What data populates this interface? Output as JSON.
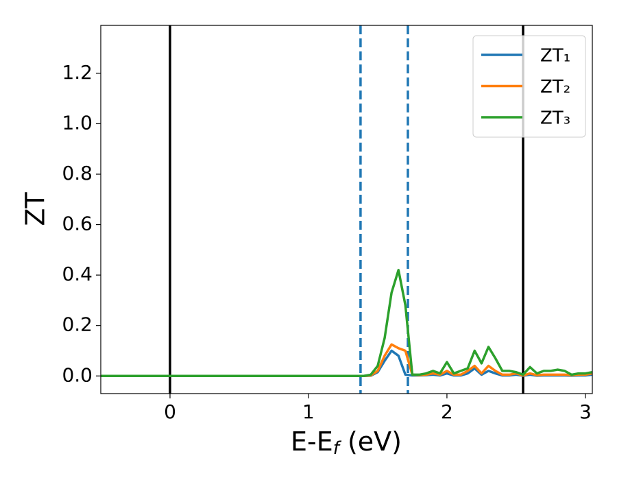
{
  "chart_data": {
    "type": "line",
    "xlabel": [
      "E-E",
      "f",
      " (eV)"
    ],
    "ylabel": "ZT",
    "xlim": [
      -0.5,
      3.05
    ],
    "ylim": [
      -0.07,
      1.39
    ],
    "xticks": [
      0,
      1,
      2,
      3
    ],
    "yticks": [
      {
        "value": 0,
        "label": "0.0"
      },
      0.2,
      0.4,
      0.6,
      0.8,
      {
        "value": 1,
        "label": "1.0"
      },
      1.2
    ],
    "x": [
      -0.5,
      0,
      0.5,
      1,
      1.3,
      1.4,
      1.45,
      1.5,
      1.55,
      1.6,
      1.65,
      1.7,
      1.75,
      1.8,
      1.85,
      1.9,
      1.95,
      2.0,
      2.05,
      2.1,
      2.15,
      2.2,
      2.25,
      2.3,
      2.35,
      2.4,
      2.45,
      2.5,
      2.55,
      2.6,
      2.65,
      2.7,
      2.75,
      2.8,
      2.85,
      2.9,
      2.95,
      3.0,
      3.05
    ],
    "series": [
      {
        "name": "ZT₁",
        "color": "#1f77b4",
        "values": [
          0,
          0,
          0,
          0,
          0,
          0,
          0.001,
          0.015,
          0.06,
          0.1,
          0.08,
          0.005,
          0.002,
          0.002,
          0.003,
          0.005,
          0.002,
          0.01,
          0.002,
          0.002,
          0.01,
          0.03,
          0.005,
          0.02,
          0.01,
          0.002,
          0.002,
          0.005,
          0.001,
          0.005,
          0.001,
          0.002,
          0.002,
          0.002,
          0.002,
          0.001,
          0.002,
          0.002,
          0.005
        ]
      },
      {
        "name": "ZT₂",
        "color": "#ff7f0e",
        "values": [
          0,
          0,
          0,
          0,
          0,
          0,
          0.002,
          0.02,
          0.08,
          0.125,
          0.11,
          0.1,
          0.005,
          0.003,
          0.005,
          0.01,
          0.005,
          0.02,
          0.005,
          0.005,
          0.02,
          0.04,
          0.01,
          0.04,
          0.02,
          0.005,
          0.005,
          0.01,
          0.002,
          0.01,
          0.003,
          0.005,
          0.005,
          0.005,
          0.005,
          0.003,
          0.005,
          0.005,
          0.01
        ]
      },
      {
        "name": "ZT₃",
        "color": "#2ca02c",
        "values": [
          0,
          0,
          0,
          0,
          0,
          0,
          0.005,
          0.04,
          0.15,
          0.33,
          0.42,
          0.28,
          0.005,
          0.005,
          0.01,
          0.02,
          0.01,
          0.055,
          0.01,
          0.02,
          0.03,
          0.1,
          0.05,
          0.115,
          0.07,
          0.02,
          0.02,
          0.015,
          0.005,
          0.035,
          0.01,
          0.02,
          0.02,
          0.025,
          0.02,
          0.005,
          0.01,
          0.01,
          0.015
        ]
      }
    ],
    "vlines": [
      {
        "x": 0,
        "color": "#000000",
        "style": "solid"
      },
      {
        "x": 2.55,
        "color": "#000000",
        "style": "solid"
      },
      {
        "x": 1.376,
        "color": "#1f77b4",
        "style": "dashed"
      },
      {
        "x": 1.718,
        "color": "#1f77b4",
        "style": "dashed"
      }
    ],
    "legend": "upper right"
  }
}
